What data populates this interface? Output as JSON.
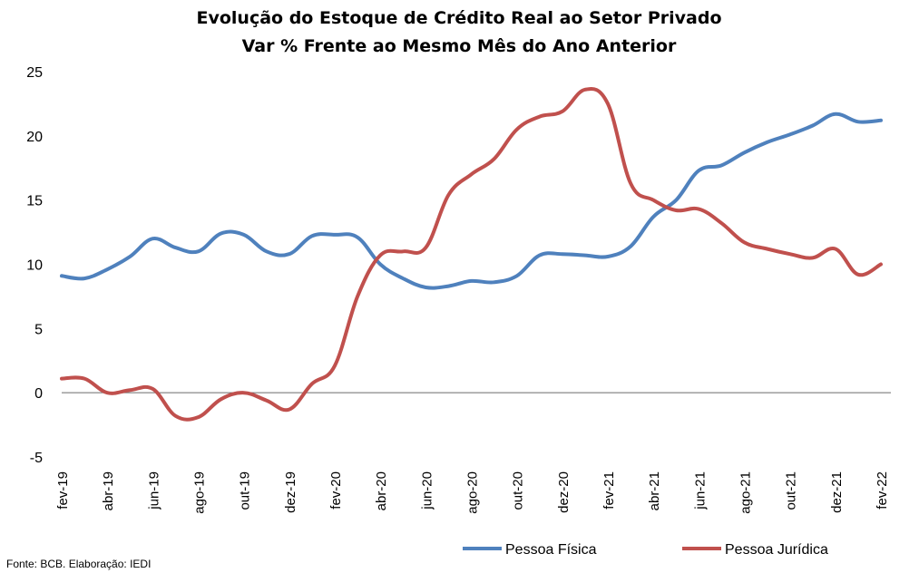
{
  "chart_data": {
    "type": "line",
    "title": "Evolução do Estoque de Crédito Real ao Setor Privado",
    "subtitle": "Var % Frente ao Mesmo Mês do Ano Anterior",
    "xlabel": "",
    "ylabel": "",
    "ylim": [
      -5,
      25
    ],
    "yticks": [
      "25",
      "20",
      "15",
      "10",
      "5",
      "0",
      "-5"
    ],
    "ytick_values": [
      25,
      20,
      15,
      10,
      5,
      0,
      -5
    ],
    "x": [
      "fev-19",
      "mar-19",
      "abr-19",
      "mai-19",
      "jun-19",
      "jul-19",
      "ago-19",
      "set-19",
      "out-19",
      "nov-19",
      "dez-19",
      "jan-20",
      "fev-20",
      "mar-20",
      "abr-20",
      "mai-20",
      "jun-20",
      "jul-20",
      "ago-20",
      "set-20",
      "out-20",
      "nov-20",
      "dez-20",
      "jan-21",
      "fev-21",
      "mar-21",
      "abr-21",
      "mai-21",
      "jun-21",
      "jul-21",
      "ago-21",
      "set-21",
      "out-21",
      "nov-21",
      "dez-21",
      "jan-22",
      "fev-22"
    ],
    "xtick_labels": [
      "fev-19",
      "abr-19",
      "jun-19",
      "ago-19",
      "out-19",
      "dez-19",
      "fev-20",
      "abr-20",
      "jun-20",
      "ago-20",
      "out-20",
      "dez-20",
      "fev-21",
      "abr-21",
      "jun-21",
      "ago-21",
      "out-21",
      "dez-21",
      "fev-22"
    ],
    "grid": false,
    "legend_position": "bottom-right",
    "series": [
      {
        "name": "Pessoa Física",
        "color": "#4F81BD",
        "values": [
          9.1,
          8.9,
          9.6,
          10.6,
          12.0,
          11.3,
          11.0,
          12.4,
          12.3,
          11.0,
          10.8,
          12.2,
          12.3,
          12.1,
          10.0,
          8.9,
          8.2,
          8.3,
          8.7,
          8.6,
          9.1,
          10.7,
          10.8,
          10.7,
          10.6,
          11.4,
          13.7,
          15.0,
          17.3,
          17.7,
          18.7,
          19.5,
          20.1,
          20.8,
          21.7,
          21.1,
          21.2
        ]
      },
      {
        "name": "Pessoa Jurídica",
        "color": "#C0504D",
        "values": [
          1.1,
          1.1,
          0.0,
          0.2,
          0.3,
          -1.8,
          -1.9,
          -0.5,
          0.0,
          -0.6,
          -1.3,
          0.7,
          2.1,
          7.5,
          10.7,
          11.0,
          11.3,
          15.4,
          17.0,
          18.2,
          20.5,
          21.5,
          21.9,
          23.6,
          22.5,
          16.3,
          15.0,
          14.2,
          14.3,
          13.2,
          11.7,
          11.2,
          10.8,
          10.5,
          11.2,
          9.2,
          10.0
        ]
      }
    ]
  },
  "legend": {
    "items": [
      {
        "label": "Pessoa Física",
        "color": "#4F81BD"
      },
      {
        "label": "Pessoa Jurídica",
        "color": "#C0504D"
      }
    ]
  },
  "source": "Fonte: BCB. Elaboração: IEDI"
}
